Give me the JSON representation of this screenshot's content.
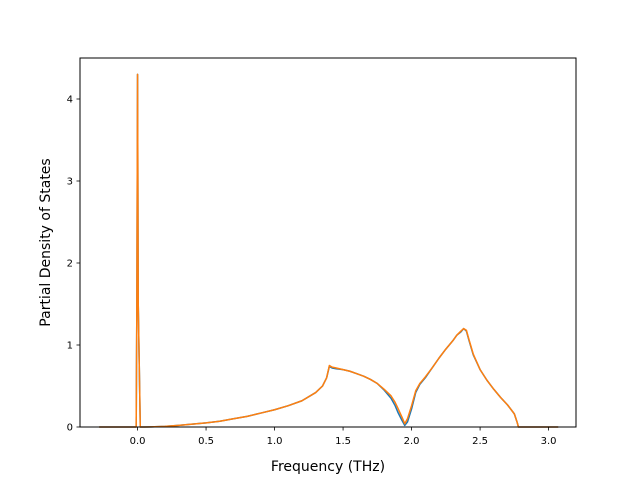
{
  "chart_data": {
    "type": "line",
    "title": "",
    "xlabel": "Frequency (THz)",
    "ylabel": "Partial Density of States",
    "xlim": [
      -0.42,
      3.2
    ],
    "ylim": [
      0,
      4.5
    ],
    "xticks": [
      0.0,
      0.5,
      1.0,
      1.5,
      2.0,
      2.5,
      3.0
    ],
    "xtick_labels": [
      "0.0",
      "0.5",
      "1.0",
      "1.5",
      "2.0",
      "2.5",
      "3.0"
    ],
    "yticks": [
      0,
      1,
      2,
      3,
      4
    ],
    "ytick_labels": [
      "0",
      "1",
      "2",
      "3",
      "4"
    ],
    "grid": false,
    "legend": "none",
    "series": [
      {
        "color": "#1f77b4",
        "x": [
          -0.28,
          -0.01,
          -0.005,
          0.0,
          0.005,
          0.02,
          0.05,
          0.1,
          0.2,
          0.3,
          0.4,
          0.5,
          0.6,
          0.7,
          0.8,
          0.9,
          1.0,
          1.1,
          1.2,
          1.3,
          1.35,
          1.38,
          1.4,
          1.42,
          1.45,
          1.5,
          1.55,
          1.6,
          1.65,
          1.7,
          1.75,
          1.8,
          1.85,
          1.88,
          1.9,
          1.93,
          1.95,
          1.97,
          2.0,
          2.03,
          2.06,
          2.1,
          2.15,
          2.2,
          2.25,
          2.3,
          2.33,
          2.36,
          2.38,
          2.4,
          2.42,
          2.45,
          2.5,
          2.55,
          2.6,
          2.65,
          2.7,
          2.75,
          2.77,
          2.78,
          2.85,
          3.07
        ],
        "values": [
          0.0,
          0.0,
          1.5,
          4.3,
          1.5,
          0.0,
          0.0,
          0.002,
          0.008,
          0.02,
          0.035,
          0.05,
          0.07,
          0.1,
          0.13,
          0.17,
          0.21,
          0.26,
          0.32,
          0.42,
          0.5,
          0.6,
          0.74,
          0.72,
          0.71,
          0.7,
          0.68,
          0.65,
          0.62,
          0.58,
          0.53,
          0.45,
          0.35,
          0.26,
          0.18,
          0.08,
          0.02,
          0.06,
          0.22,
          0.42,
          0.52,
          0.6,
          0.72,
          0.84,
          0.95,
          1.05,
          1.12,
          1.16,
          1.2,
          1.17,
          1.05,
          0.88,
          0.7,
          0.57,
          0.46,
          0.36,
          0.27,
          0.16,
          0.06,
          0.0,
          0.0,
          0.0
        ]
      },
      {
        "color": "#ff7f0e",
        "x": [
          -0.28,
          -0.01,
          -0.005,
          0.0,
          0.005,
          0.02,
          0.05,
          0.1,
          0.2,
          0.3,
          0.4,
          0.5,
          0.6,
          0.7,
          0.8,
          0.9,
          1.0,
          1.1,
          1.2,
          1.3,
          1.35,
          1.38,
          1.4,
          1.42,
          1.45,
          1.5,
          1.55,
          1.6,
          1.65,
          1.7,
          1.75,
          1.8,
          1.85,
          1.88,
          1.9,
          1.93,
          1.95,
          1.97,
          2.0,
          2.03,
          2.06,
          2.1,
          2.15,
          2.2,
          2.25,
          2.3,
          2.33,
          2.36,
          2.38,
          2.4,
          2.42,
          2.45,
          2.5,
          2.55,
          2.6,
          2.65,
          2.7,
          2.75,
          2.77,
          2.78,
          2.85,
          3.07
        ],
        "values": [
          0.0,
          0.0,
          1.5,
          4.3,
          1.5,
          0.0,
          0.0,
          0.002,
          0.008,
          0.02,
          0.035,
          0.05,
          0.07,
          0.1,
          0.13,
          0.17,
          0.21,
          0.26,
          0.32,
          0.42,
          0.5,
          0.6,
          0.75,
          0.73,
          0.72,
          0.7,
          0.68,
          0.65,
          0.62,
          0.58,
          0.53,
          0.46,
          0.38,
          0.3,
          0.23,
          0.12,
          0.04,
          0.1,
          0.26,
          0.44,
          0.53,
          0.61,
          0.72,
          0.84,
          0.95,
          1.05,
          1.12,
          1.17,
          1.2,
          1.18,
          1.06,
          0.89,
          0.7,
          0.57,
          0.46,
          0.36,
          0.27,
          0.16,
          0.06,
          0.0,
          0.0,
          0.0
        ]
      }
    ]
  }
}
